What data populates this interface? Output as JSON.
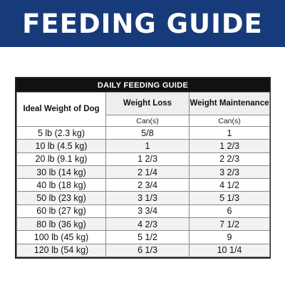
{
  "banner": {
    "title": "FEEDING GUIDE"
  },
  "guide": {
    "title": "DAILY FEEDING GUIDE",
    "headers": {
      "weight": "Ideal Weight of Dog",
      "loss": "Weight Loss",
      "maintenance": "Weight Maintenance",
      "loss_unit": "Can(s)",
      "maintenance_unit": "Can(s)"
    },
    "rows": [
      {
        "weight": "5 lb (2.3 kg)",
        "loss": "5/8",
        "maintenance": "1"
      },
      {
        "weight": "10 lb (4.5 kg)",
        "loss": "1",
        "maintenance": "1 2/3"
      },
      {
        "weight": "20 lb (9.1 kg)",
        "loss": "1 2/3",
        "maintenance": "2 2/3"
      },
      {
        "weight": "30 lb (14 kg)",
        "loss": "2 1/4",
        "maintenance": "3 2/3"
      },
      {
        "weight": "40 lb (18 kg)",
        "loss": "2 3/4",
        "maintenance": "4 1/2"
      },
      {
        "weight": "50 lb (23 kg)",
        "loss": "3 1/3",
        "maintenance": "5 1/3"
      },
      {
        "weight": "60 lb (27 kg)",
        "loss": "3 3/4",
        "maintenance": "6"
      },
      {
        "weight": "80 lb (36 kg)",
        "loss": "4 2/3",
        "maintenance": "7 1/2"
      },
      {
        "weight": "100 lb (45 kg)",
        "loss": "5 1/2",
        "maintenance": "9"
      },
      {
        "weight": "120 lb (54 kg)",
        "loss": "6 1/3",
        "maintenance": "10 1/4"
      }
    ]
  },
  "colors": {
    "banner": "#173b7a",
    "header_bg": "#111111"
  }
}
